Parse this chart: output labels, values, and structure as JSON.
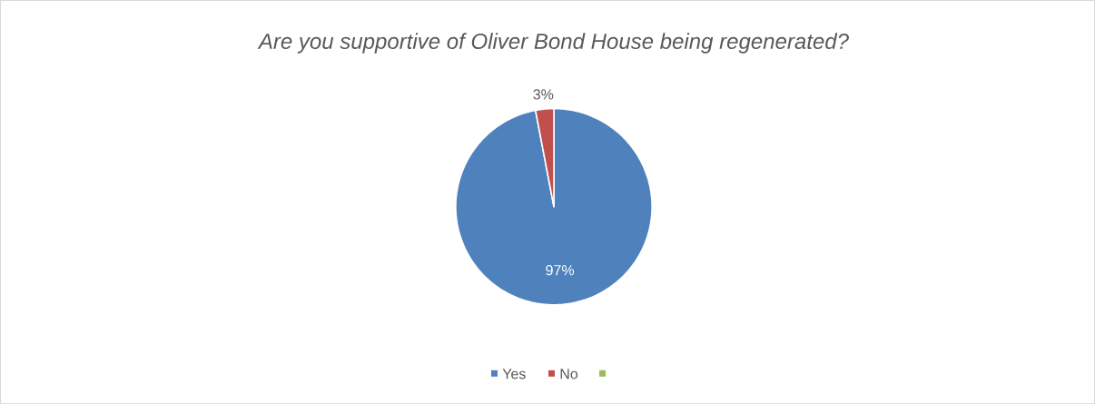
{
  "chart_data": {
    "type": "pie",
    "title": "Are you supportive of Oliver Bond House being regenerated?",
    "categories": [
      "Yes",
      "No",
      null
    ],
    "values": [
      97,
      3,
      0
    ],
    "colors": [
      "#4f81bd",
      "#c0504d",
      "#9bbb59"
    ],
    "value_labels": [
      "97%",
      "3%",
      null
    ],
    "legend": "bottom"
  }
}
